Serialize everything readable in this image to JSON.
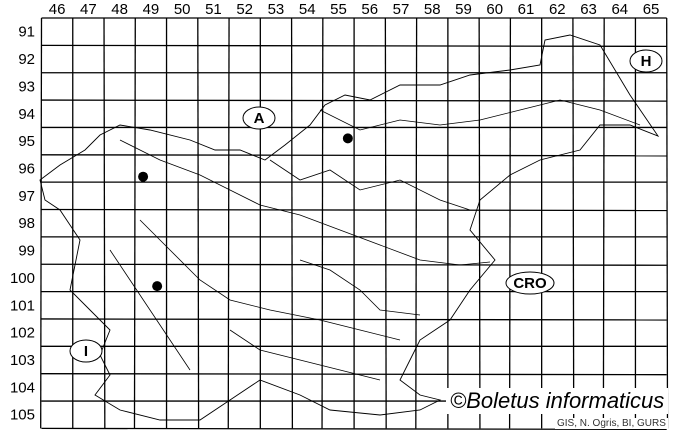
{
  "map": {
    "columns": [
      "46",
      "47",
      "48",
      "49",
      "50",
      "51",
      "52",
      "53",
      "54",
      "55",
      "56",
      "57",
      "58",
      "59",
      "60",
      "61",
      "62",
      "63",
      "64",
      "65"
    ],
    "rows": [
      "91",
      "92",
      "93",
      "94",
      "95",
      "96",
      "97",
      "98",
      "99",
      "100",
      "101",
      "102",
      "103",
      "104",
      "105"
    ],
    "neighbour_labels": [
      "A",
      "H",
      "CRO",
      "I"
    ],
    "records": [
      {
        "x": 49.25,
        "y": 96.8
      },
      {
        "x": 55.8,
        "y": 95.4
      },
      {
        "x": 49.7,
        "y": 100.8
      }
    ],
    "record_color": "#000000"
  },
  "copyright": "©Boletus informaticus",
  "credit": "GIS, N. Ogris, BI, GURS"
}
